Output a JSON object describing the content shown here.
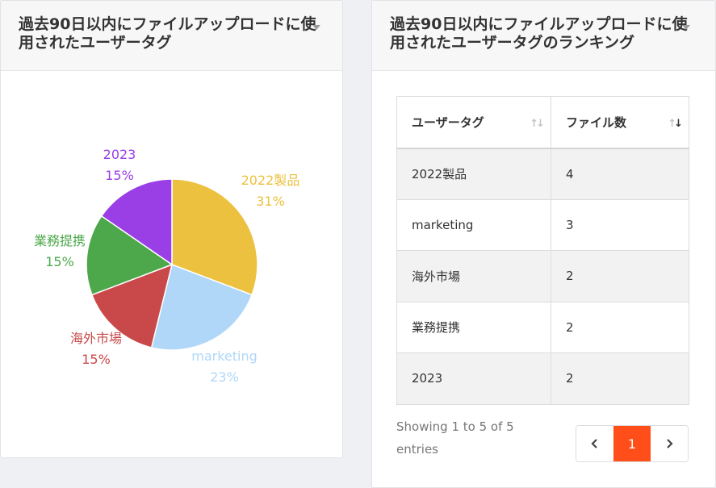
{
  "pie_card": {
    "title": "過去90日以内にファイルアップロードに使用されたユーザータグ"
  },
  "ranking_card": {
    "title": "過去90日以内にファイルアップロードに使用されたユーザータグのランキング",
    "columns": [
      "ユーザータグ",
      "ファイル数"
    ],
    "rows": [
      {
        "tag": "2022製品",
        "count": "4"
      },
      {
        "tag": "marketing",
        "count": "3"
      },
      {
        "tag": "海外市場",
        "count": "2"
      },
      {
        "tag": "業務提携",
        "count": "2"
      },
      {
        "tag": "2023",
        "count": "2"
      }
    ],
    "info": "Showing 1 to 5 of 5 entries",
    "pagination": {
      "prev_icon": "chevron-left-icon",
      "current_page": "1",
      "next_icon": "chevron-right-icon"
    }
  },
  "colors": {
    "accent": "#ff4e1a"
  },
  "chart_data": {
    "type": "pie",
    "title": "",
    "categories": [
      "2022製品",
      "marketing",
      "海外市場",
      "業務提携",
      "2023"
    ],
    "values": [
      4,
      3,
      2,
      2,
      2
    ],
    "percent_labels": [
      "31%",
      "23%",
      "15%",
      "15%",
      "15%"
    ],
    "colors": [
      "#ecc13f",
      "#b0d7f8",
      "#c9494a",
      "#4ca84b",
      "#9a3ee6"
    ],
    "legend": "none"
  }
}
